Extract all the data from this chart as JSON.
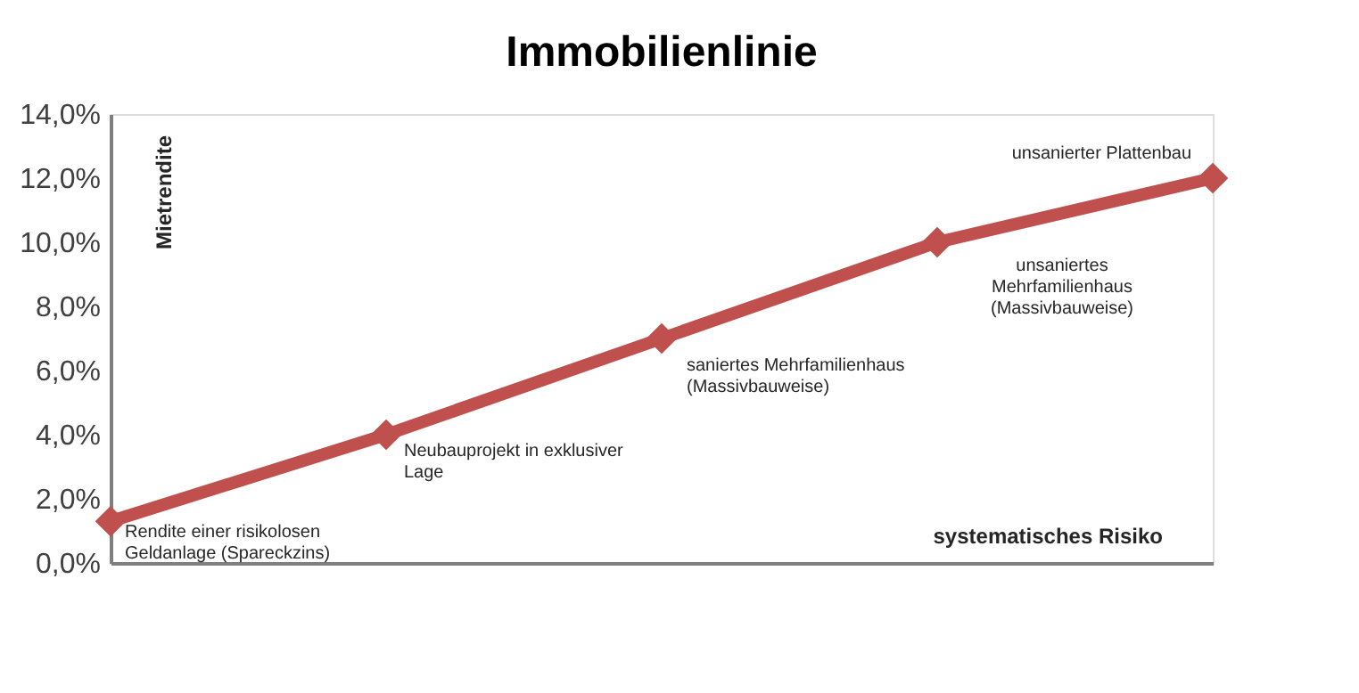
{
  "chart_data": {
    "type": "line",
    "title": "Immobilienlinie",
    "xlabel": "systematisches Risiko",
    "ylabel": "Mietrendite",
    "categories": [
      null,
      null,
      null,
      null,
      null
    ],
    "series": [
      {
        "color": "#c0504d",
        "values": [
          1.3,
          4.0,
          7.0,
          10.0,
          12.0
        ]
      }
    ],
    "ylim": [
      0,
      14
    ],
    "yticks": [
      {
        "value": 0,
        "label": "0,0%"
      },
      {
        "value": 2,
        "label": "2,0%"
      },
      {
        "value": 4,
        "label": "4,0%"
      },
      {
        "value": 6,
        "label": "6,0%"
      },
      {
        "value": 8,
        "label": "8,0%"
      },
      {
        "value": 10,
        "label": "10,0%"
      },
      {
        "value": 12,
        "label": "12,0%"
      },
      {
        "value": 14,
        "label": "14,0%"
      }
    ],
    "annotations": [
      "Rendite einer risikolosen\nGeldanlage (Spareckzins)",
      "Neubauprojekt in exklusiver\nLage",
      "saniertes Mehrfamilienhaus\n(Massivbauweise)",
      "unsaniertes\nMehrfamilienhaus\n(Massivbauweise)",
      "unsanierter Plattenbau"
    ],
    "marker": "diamond",
    "line_style": "solid"
  }
}
